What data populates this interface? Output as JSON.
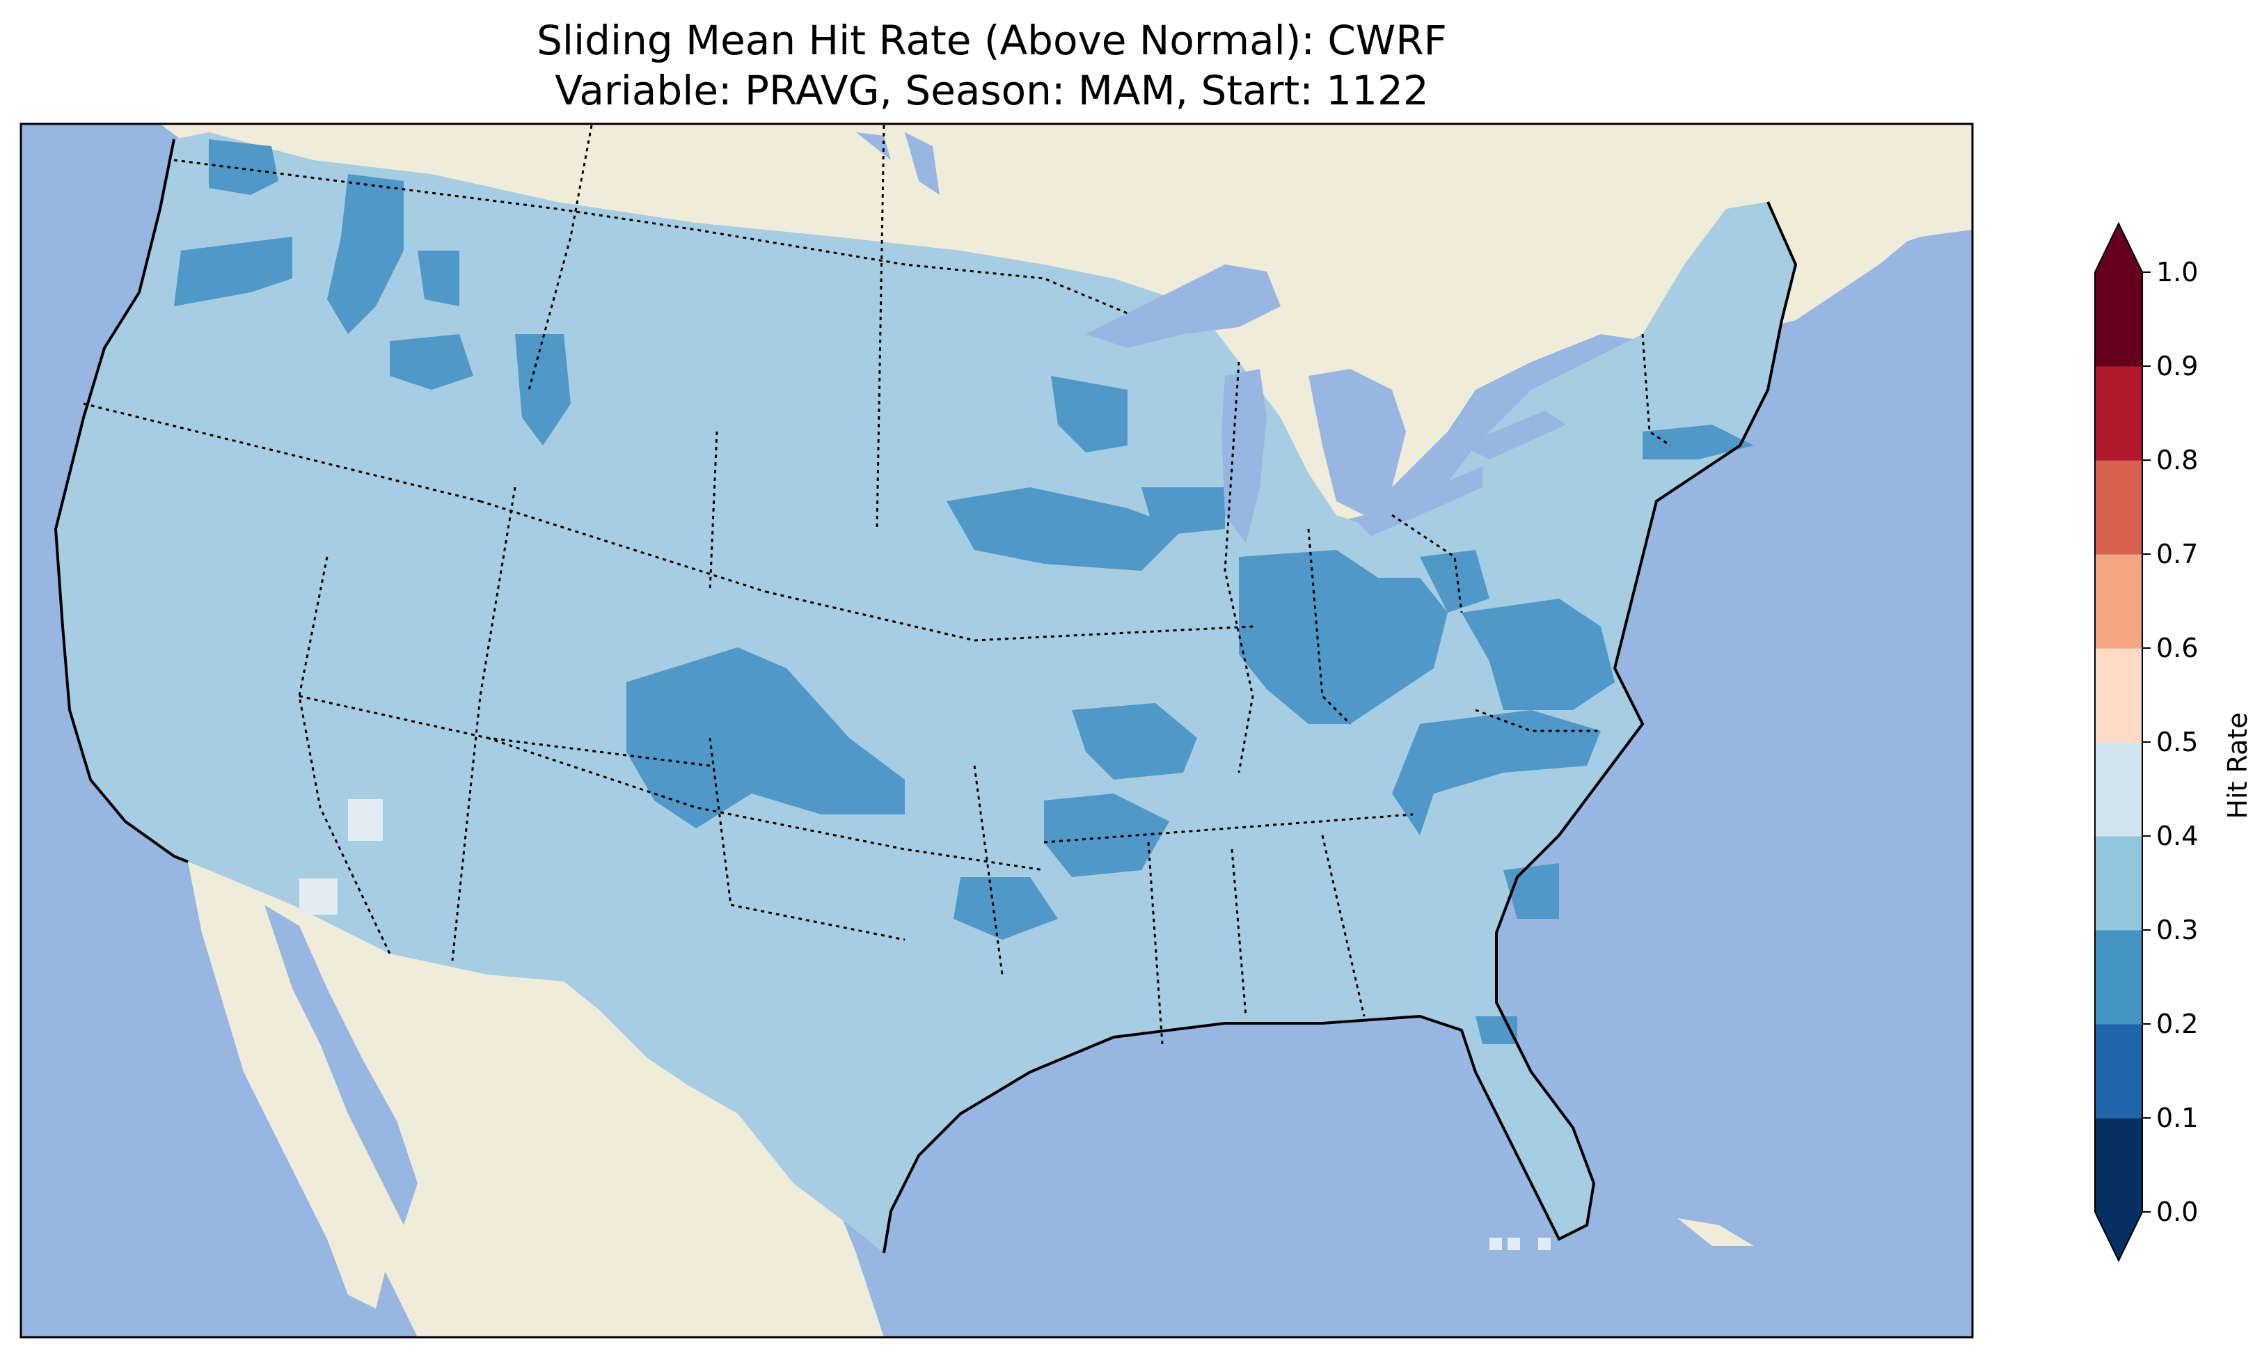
{
  "title": {
    "line1": "Sliding Mean Hit Rate (Above Normal): CWRF",
    "line2": "Variable: PRAVG, Season: MAM, Start: 1122"
  },
  "colors": {
    "ocean": "#97b6e1",
    "land_outside": "#efedda",
    "lakes": "#97b6e1",
    "coastline": "#000000",
    "state_borders": "#000000"
  },
  "colorbar": {
    "label": "Hit Rate",
    "ticks": [
      "0.0",
      "0.1",
      "0.2",
      "0.3",
      "0.4",
      "0.5",
      "0.6",
      "0.7",
      "0.8",
      "0.9",
      "1.0"
    ],
    "bins": [
      {
        "from": 0.0,
        "to": 0.1,
        "color": "#053061"
      },
      {
        "from": 0.1,
        "to": 0.2,
        "color": "#2166ac"
      },
      {
        "from": 0.2,
        "to": 0.3,
        "color": "#4393c3"
      },
      {
        "from": 0.3,
        "to": 0.4,
        "color": "#92c5de"
      },
      {
        "from": 0.4,
        "to": 0.5,
        "color": "#d1e5f0"
      },
      {
        "from": 0.5,
        "to": 0.6,
        "color": "#fddbc7"
      },
      {
        "from": 0.6,
        "to": 0.7,
        "color": "#f4a582"
      },
      {
        "from": 0.7,
        "to": 0.8,
        "color": "#d6604d"
      },
      {
        "from": 0.8,
        "to": 0.9,
        "color": "#b2182b"
      },
      {
        "from": 0.9,
        "to": 1.0,
        "color": "#67001f"
      }
    ],
    "extend": "both"
  },
  "field": {
    "dominant_bin": "0.3-0.4",
    "low_bin_regions": "0.2-0.3",
    "high_bin_regions": "0.4-0.5"
  }
}
